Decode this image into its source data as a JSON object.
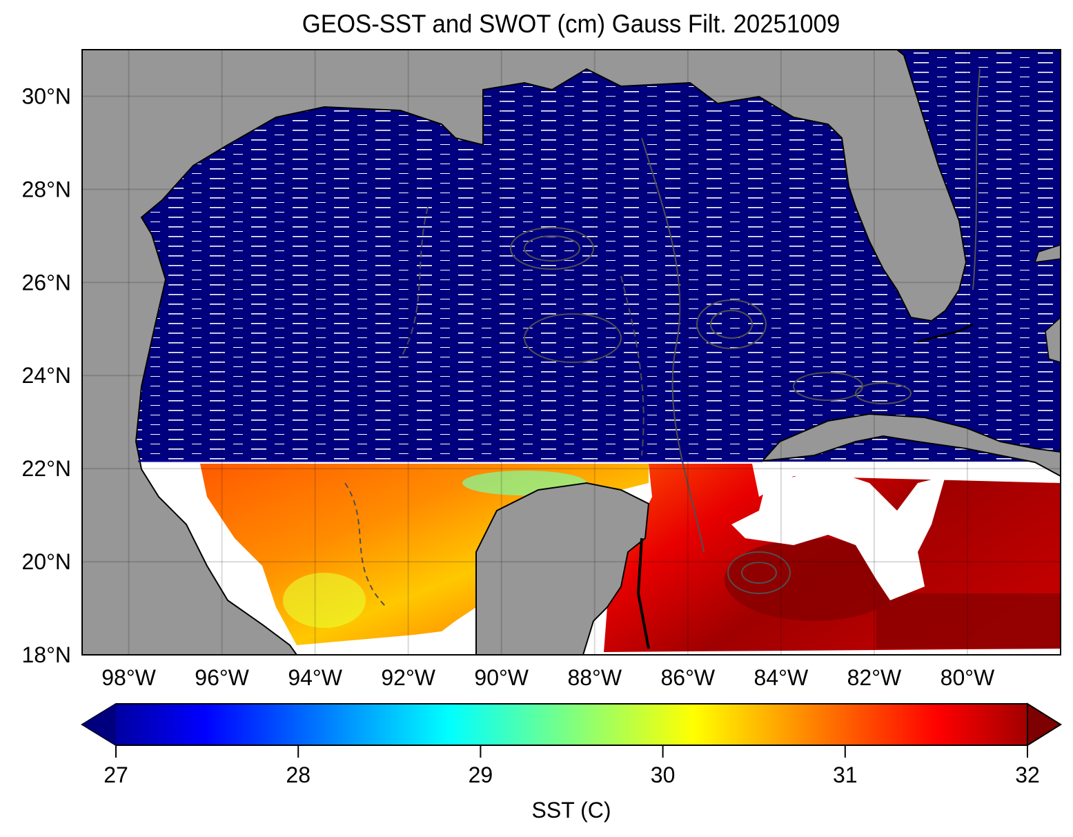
{
  "title": "GEOS-SST  and SWOT (cm) Gauss Filt. 20251009",
  "map": {
    "lon_range_W": [
      99,
      78
    ],
    "lat_range_N": [
      18,
      31
    ],
    "lat_ticks": [
      18,
      20,
      22,
      24,
      26,
      28,
      30
    ],
    "lat_tick_labels": [
      "18°N",
      "20°N",
      "22°N",
      "24°N",
      "26°N",
      "28°N",
      "30°N"
    ],
    "lon_ticks": [
      98,
      96,
      94,
      92,
      90,
      88,
      86,
      84,
      82,
      80
    ],
    "lon_tick_labels": [
      "98°W",
      "96°W",
      "94°W",
      "92°W",
      "90°W",
      "88°W",
      "86°W",
      "84°W",
      "82°W",
      "80°W"
    ],
    "land_color": "#979797",
    "no_data_color": "#ffffff",
    "north_ocean_color": "#00007f",
    "swot_contour_color": "#505050",
    "sst_south_of_lat": 22.1
  },
  "colorbar": {
    "label": "SST (C)",
    "min": 27,
    "max": 32,
    "ticks": [
      27,
      28,
      29,
      30,
      31,
      32
    ],
    "tick_labels": [
      "27",
      "28",
      "29",
      "30",
      "31",
      "32"
    ],
    "extend": "both",
    "colormap": "jet",
    "colors": [
      "#00007f",
      "#0000ff",
      "#007fff",
      "#00ffff",
      "#7fff7f",
      "#ffff00",
      "#ff7f00",
      "#ff0000",
      "#7f0000"
    ]
  }
}
